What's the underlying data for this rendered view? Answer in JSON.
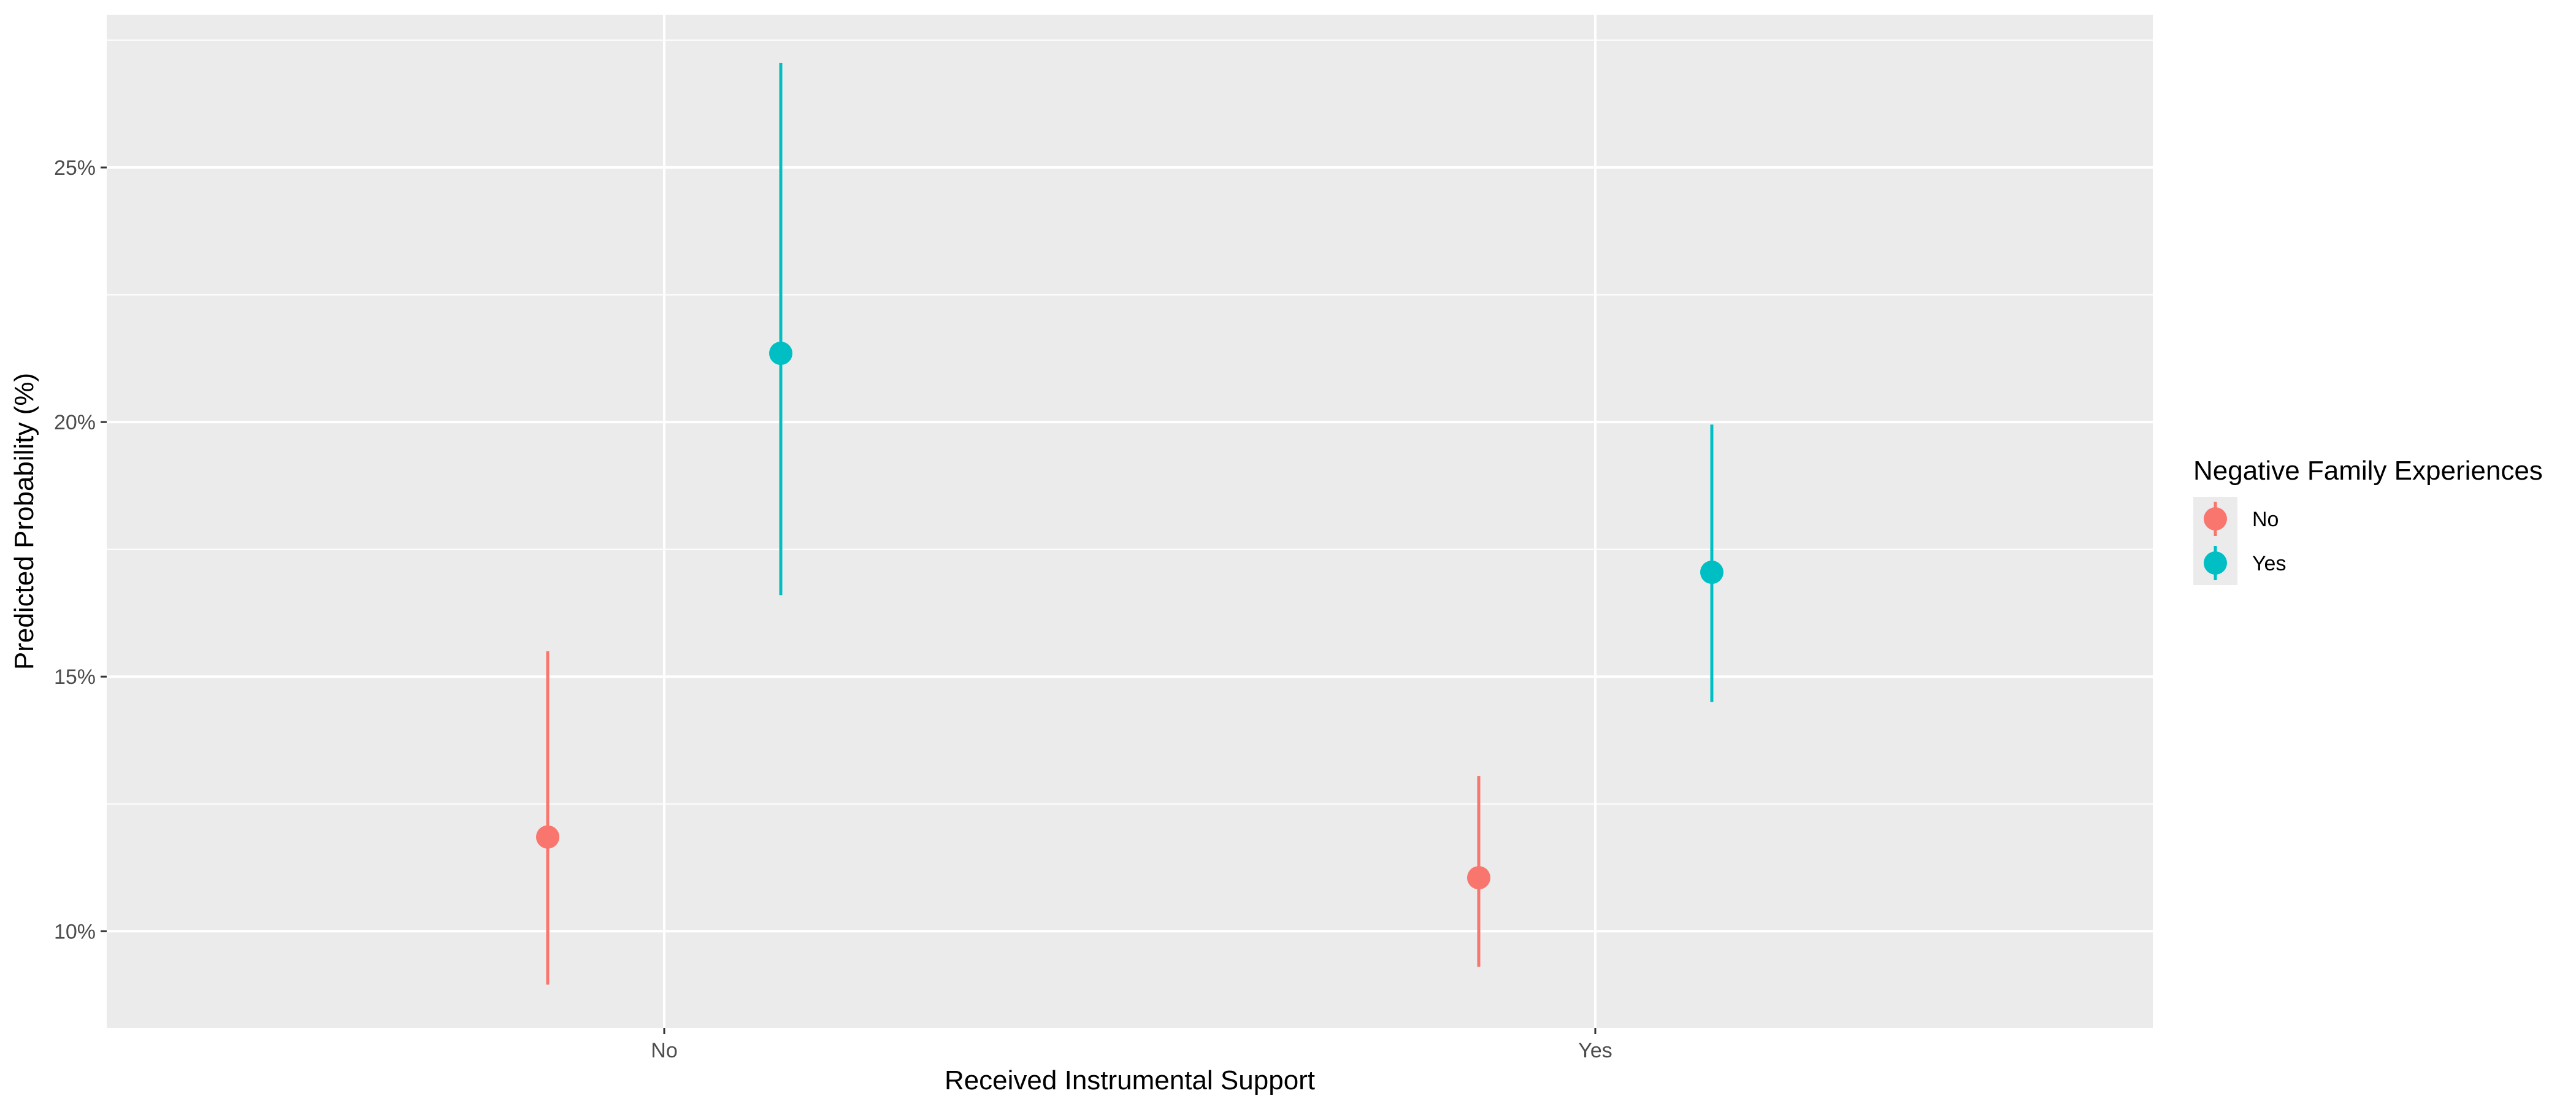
{
  "chart_data": {
    "type": "pointrange",
    "title": "",
    "xlabel": "Received Instrumental Support",
    "ylabel": "Predicted Probability (%)",
    "categories": [
      "No",
      "Yes"
    ],
    "y_ticks": [
      10,
      15,
      20,
      25
    ],
    "y_tick_labels": [
      "10%",
      "15%",
      "20%",
      "25%"
    ],
    "ylim": [
      8.1,
      28.0
    ],
    "grid": true,
    "legend": {
      "title": "Negative Family Experiences",
      "position": "right",
      "entries": [
        "No",
        "Yes"
      ]
    },
    "series": [
      {
        "name": "No",
        "color": "#F8766D",
        "values": [
          11.85,
          11.05
        ],
        "lower": [
          8.95,
          9.3
        ],
        "upper": [
          15.5,
          13.05
        ]
      },
      {
        "name": "Yes",
        "color": "#00BFC4",
        "values": [
          21.35,
          17.05
        ],
        "lower": [
          16.6,
          14.5
        ],
        "upper": [
          27.05,
          19.95
        ]
      }
    ]
  }
}
